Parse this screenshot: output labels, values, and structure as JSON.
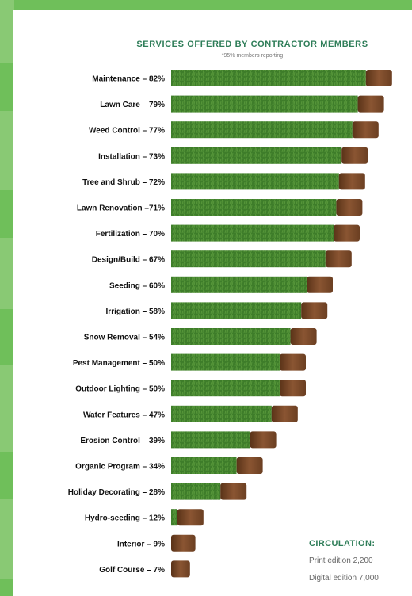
{
  "colors": {
    "page_background": "#6fbf5a",
    "card_background": "#ffffff",
    "accent_green": "#2e7d58",
    "grass": "#3e7d2a",
    "grass_light": "#5a9a3c",
    "soil": "#6b3f22",
    "soil_light": "#8a5532"
  },
  "chart_data": {
    "type": "bar",
    "orientation": "horizontal",
    "title": "SERVICES OFFERED BY CONTRACTOR MEMBERS",
    "subtitle": "*95% members reporting",
    "categories": [
      "Maintenance – 82%",
      "Lawn Care – 79%",
      "Weed Control – 77%",
      "Installation – 73%",
      "Tree and Shrub – 72%",
      "Lawn Renovation –71%",
      "Fertilization – 70%",
      "Design/Build – 67%",
      "Seeding – 60%",
      "Irrigation – 58%",
      "Snow Removal – 54%",
      "Pest Management – 50%",
      "Outdoor Lighting – 50%",
      "Water Features – 47%",
      "Erosion Control – 39%",
      "Organic Program – 34%",
      "Holiday Decorating – 28%",
      "Hydro-seeding – 12%",
      "Interior – 9%",
      "Golf Course – 7%"
    ],
    "values": [
      82,
      79,
      77,
      73,
      72,
      71,
      70,
      67,
      60,
      58,
      54,
      50,
      50,
      47,
      39,
      34,
      28,
      12,
      9,
      7
    ],
    "unit": "%",
    "xlim": [
      0,
      100
    ],
    "grid": false,
    "legend": "none"
  },
  "circulation": {
    "title": "CIRCULATION:",
    "print": "Print edition 2,200",
    "digital": "Digital edition 7,000"
  }
}
